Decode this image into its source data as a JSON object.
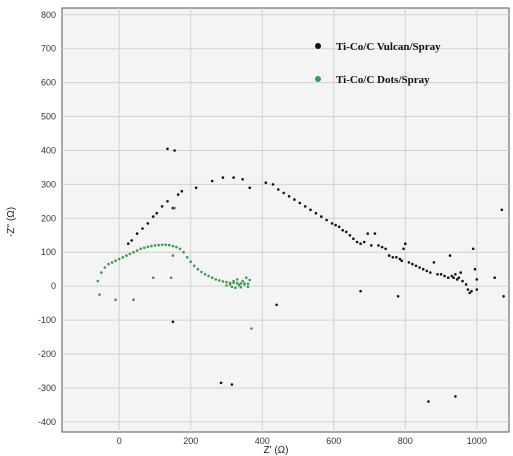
{
  "chart_data": {
    "type": "scatter",
    "xlabel": "Z' (Ω)",
    "ylabel": "-Z'' (Ω)",
    "xlim": [
      -160,
      1090
    ],
    "ylim": [
      -430,
      820
    ],
    "xticks": [
      0,
      200,
      400,
      600,
      800,
      1000
    ],
    "yticks": [
      -400,
      -300,
      -200,
      -100,
      0,
      100,
      200,
      300,
      400,
      500,
      600,
      700,
      800
    ],
    "grid": true,
    "legend_position": "top-right",
    "series": [
      {
        "name": "Ti-Co/C Vulcan/Spray",
        "color": "#111111",
        "points": [
          [
            25,
            125
          ],
          [
            35,
            135
          ],
          [
            50,
            155
          ],
          [
            65,
            170
          ],
          [
            80,
            185
          ],
          [
            95,
            205
          ],
          [
            105,
            215
          ],
          [
            120,
            235
          ],
          [
            135,
            250
          ],
          [
            150,
            230
          ],
          [
            165,
            270
          ],
          [
            175,
            280
          ],
          [
            215,
            290
          ],
          [
            260,
            310
          ],
          [
            290,
            320
          ],
          [
            320,
            320
          ],
          [
            345,
            315
          ],
          [
            365,
            290
          ],
          [
            410,
            305
          ],
          [
            430,
            300
          ],
          [
            445,
            285
          ],
          [
            460,
            275
          ],
          [
            475,
            265
          ],
          [
            490,
            255
          ],
          [
            505,
            245
          ],
          [
            520,
            235
          ],
          [
            535,
            225
          ],
          [
            550,
            215
          ],
          [
            565,
            205
          ],
          [
            580,
            195
          ],
          [
            595,
            185
          ],
          [
            605,
            180
          ],
          [
            615,
            175
          ],
          [
            625,
            165
          ],
          [
            635,
            160
          ],
          [
            645,
            150
          ],
          [
            655,
            140
          ],
          [
            665,
            130
          ],
          [
            675,
            125
          ],
          [
            685,
            130
          ],
          [
            695,
            155
          ],
          [
            705,
            120
          ],
          [
            715,
            155
          ],
          [
            725,
            120
          ],
          [
            735,
            115
          ],
          [
            745,
            110
          ],
          [
            755,
            90
          ],
          [
            765,
            85
          ],
          [
            775,
            85
          ],
          [
            785,
            80
          ],
          [
            790,
            75
          ],
          [
            795,
            110
          ],
          [
            800,
            125
          ],
          [
            810,
            70
          ],
          [
            820,
            65
          ],
          [
            830,
            60
          ],
          [
            840,
            55
          ],
          [
            850,
            50
          ],
          [
            860,
            45
          ],
          [
            870,
            40
          ],
          [
            880,
            70
          ],
          [
            890,
            35
          ],
          [
            900,
            35
          ],
          [
            910,
            30
          ],
          [
            920,
            25
          ],
          [
            925,
            90
          ],
          [
            930,
            30
          ],
          [
            935,
            25
          ],
          [
            940,
            35
          ],
          [
            945,
            20
          ],
          [
            950,
            25
          ],
          [
            955,
            40
          ],
          [
            960,
            15
          ],
          [
            970,
            5
          ],
          [
            975,
            -10
          ],
          [
            980,
            -20
          ],
          [
            985,
            -15
          ],
          [
            990,
            110
          ],
          [
            995,
            50
          ],
          [
            1000,
            20
          ],
          [
            1050,
            25
          ],
          [
            1070,
            225
          ],
          [
            1075,
            -30
          ],
          [
            135,
            405
          ],
          [
            155,
            400
          ],
          [
            150,
            -105
          ],
          [
            285,
            -285
          ],
          [
            315,
            -290
          ],
          [
            440,
            -55
          ],
          [
            675,
            -15
          ],
          [
            780,
            -30
          ],
          [
            865,
            -340
          ],
          [
            940,
            -325
          ],
          [
            1000,
            -10
          ]
        ]
      },
      {
        "name": "Ti-Co/C Dots/Spray",
        "color": "#3a9a50",
        "points": [
          [
            -60,
            15
          ],
          [
            -50,
            40
          ],
          [
            -40,
            55
          ],
          [
            -30,
            65
          ],
          [
            -20,
            70
          ],
          [
            -10,
            75
          ],
          [
            0,
            80
          ],
          [
            10,
            85
          ],
          [
            20,
            90
          ],
          [
            30,
            95
          ],
          [
            40,
            100
          ],
          [
            50,
            105
          ],
          [
            60,
            110
          ],
          [
            70,
            113
          ],
          [
            80,
            116
          ],
          [
            90,
            118
          ],
          [
            100,
            120
          ],
          [
            110,
            121
          ],
          [
            120,
            122
          ],
          [
            130,
            122
          ],
          [
            140,
            121
          ],
          [
            150,
            118
          ],
          [
            160,
            115
          ],
          [
            170,
            110
          ],
          [
            180,
            100
          ],
          [
            190,
            85
          ],
          [
            200,
            72
          ],
          [
            210,
            60
          ],
          [
            220,
            50
          ],
          [
            230,
            42
          ],
          [
            240,
            35
          ],
          [
            250,
            30
          ],
          [
            260,
            25
          ],
          [
            270,
            20
          ],
          [
            280,
            17
          ],
          [
            290,
            14
          ],
          [
            300,
            12
          ],
          [
            310,
            10
          ],
          [
            320,
            10
          ],
          [
            330,
            9
          ],
          [
            340,
            8
          ],
          [
            350,
            8
          ],
          [
            360,
            7
          ],
          [
            300,
            2
          ],
          [
            310,
            5
          ],
          [
            315,
            -2
          ],
          [
            320,
            15
          ],
          [
            325,
            -5
          ],
          [
            330,
            20
          ],
          [
            335,
            3
          ],
          [
            340,
            -3
          ],
          [
            345,
            15
          ],
          [
            350,
            5
          ],
          [
            355,
            25
          ],
          [
            360,
            -2
          ],
          [
            365,
            18
          ],
          [
            -55,
            -25
          ],
          [
            -10,
            -40
          ],
          [
            40,
            -40
          ],
          [
            95,
            25
          ],
          [
            145,
            25
          ],
          [
            150,
            90
          ],
          [
            155,
            230
          ],
          [
            370,
            -125
          ]
        ]
      }
    ]
  }
}
